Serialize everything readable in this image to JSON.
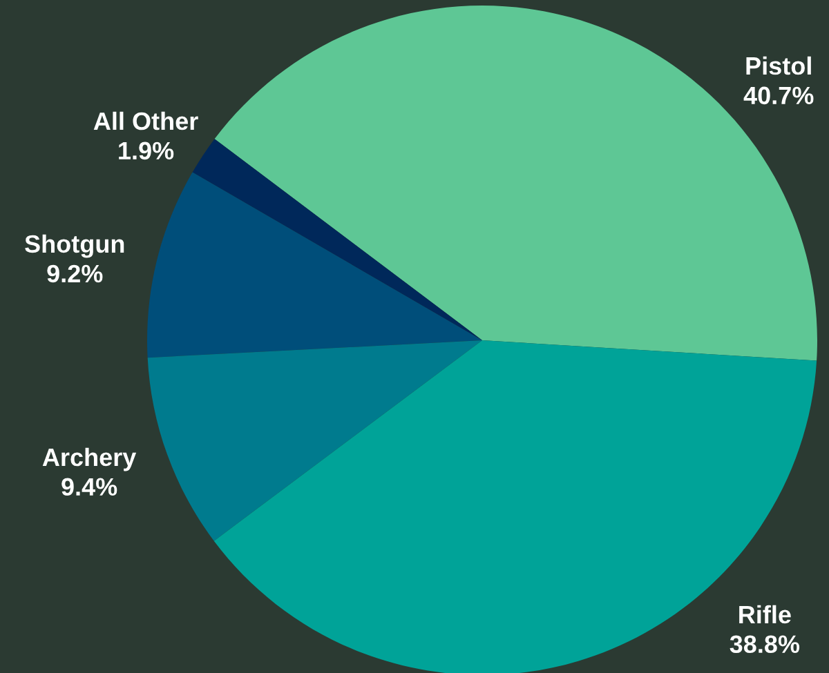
{
  "chart_data": {
    "type": "pie",
    "categories": [
      "Pistol",
      "All Other",
      "Shotgun",
      "Archery",
      "Rifle"
    ],
    "values": [
      40.7,
      1.9,
      9.2,
      9.4,
      38.8
    ],
    "value_labels": [
      "40.7%",
      "1.9%",
      "9.2%",
      "9.4%",
      "38.8%"
    ],
    "colors": [
      "#5ec795",
      "#00285a",
      "#004e7a",
      "#007b8e",
      "#00a398"
    ],
    "legend": false
  }
}
